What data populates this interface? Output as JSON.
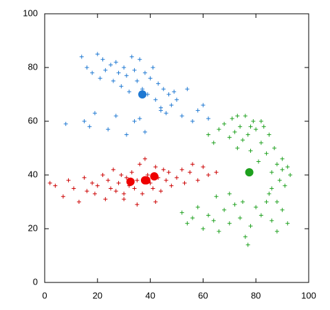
{
  "chart_data": {
    "type": "scatter",
    "xlim": [
      0,
      100
    ],
    "ylim": [
      0,
      100
    ],
    "xticks": [
      0,
      20,
      40,
      60,
      80,
      100
    ],
    "yticks": [
      0,
      20,
      40,
      60,
      80,
      100
    ],
    "series": [
      {
        "color": "#1e78d2",
        "marker": "plus",
        "x": [
          14,
          16,
          18,
          20,
          21,
          22,
          23,
          25,
          26,
          27,
          28,
          29,
          30,
          31,
          32,
          33,
          34,
          35,
          36,
          37,
          38,
          39,
          40,
          41,
          42,
          43,
          44,
          45,
          46,
          47,
          48,
          49,
          50,
          52,
          54,
          56,
          58,
          60,
          62,
          15,
          17,
          19,
          24,
          27,
          31,
          34,
          38,
          8,
          36,
          44
        ],
        "y": [
          84,
          80,
          78,
          85,
          76,
          83,
          79,
          81,
          75,
          82,
          78,
          73,
          80,
          77,
          71,
          84,
          79,
          75,
          83,
          72,
          78,
          70,
          76,
          80,
          68,
          74,
          65,
          72,
          63,
          70,
          66,
          71,
          68,
          62,
          72,
          60,
          64,
          66,
          61,
          60,
          58,
          63,
          57,
          62,
          55,
          60,
          56,
          59,
          61,
          64
        ]
      },
      {
        "color": "#cc0000",
        "marker": "plus",
        "x": [
          2,
          4,
          7,
          9,
          11,
          13,
          15,
          16,
          18,
          19,
          20,
          22,
          23,
          24,
          25,
          26,
          27,
          28,
          29,
          30,
          31,
          32,
          33,
          34,
          35,
          36,
          37,
          38,
          39,
          40,
          41,
          42,
          43,
          44,
          45,
          46,
          47,
          48,
          50,
          52,
          53,
          55,
          56,
          58,
          60,
          62,
          65,
          30,
          35,
          42
        ],
        "y": [
          37,
          36,
          32,
          38,
          35,
          30,
          39,
          34,
          37,
          33,
          36,
          40,
          31,
          38,
          35,
          42,
          34,
          37,
          40,
          33,
          39,
          36,
          41,
          35,
          38,
          44,
          33,
          46,
          40,
          37,
          35,
          43,
          39,
          34,
          42,
          38,
          41,
          36,
          39,
          42,
          37,
          41,
          44,
          38,
          43,
          40,
          41,
          31,
          29,
          30
        ]
      },
      {
        "color": "#1ea01e",
        "marker": "plus",
        "x": [
          62,
          64,
          66,
          68,
          70,
          71,
          72,
          73,
          74,
          75,
          76,
          77,
          78,
          79,
          80,
          81,
          82,
          83,
          84,
          85,
          86,
          87,
          88,
          89,
          90,
          91,
          92,
          93,
          73,
          78,
          82,
          86,
          88,
          90,
          85,
          52,
          54,
          56,
          58,
          60,
          62,
          64,
          66,
          68,
          70,
          72,
          74,
          76,
          78,
          80,
          82,
          84,
          86,
          88,
          90,
          92,
          77,
          65,
          70,
          75
        ],
        "y": [
          55,
          52,
          57,
          59,
          54,
          61,
          56,
          50,
          58,
          53,
          62,
          55,
          49,
          60,
          57,
          45,
          52,
          58,
          48,
          55,
          41,
          50,
          44,
          38,
          46,
          36,
          43,
          40,
          62,
          58,
          60,
          35,
          30,
          42,
          33,
          26,
          22,
          24,
          28,
          20,
          25,
          23,
          19,
          27,
          22,
          29,
          24,
          17,
          21,
          28,
          25,
          30,
          23,
          19,
          27,
          22,
          14,
          32,
          33,
          30
        ]
      },
      {
        "color": "#1e78d2",
        "marker": "circle",
        "x": [
          37
        ],
        "y": [
          70
        ]
      },
      {
        "color": "#ee0000",
        "marker": "circle",
        "x": [
          32.5,
          38,
          38.5,
          41.5
        ],
        "y": [
          37.5,
          38,
          38,
          39.5
        ]
      },
      {
        "color": "#1ea01e",
        "marker": "circle",
        "x": [
          77.5
        ],
        "y": [
          41
        ]
      }
    ]
  }
}
